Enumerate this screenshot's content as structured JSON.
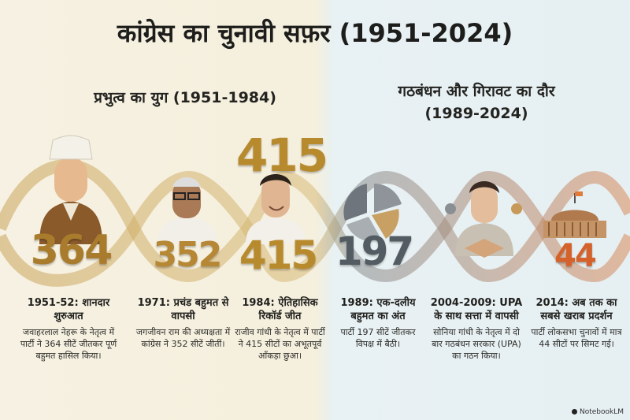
{
  "title": "कांग्रेस का चुनावी सफ़र (1951-2024)",
  "eras": {
    "dominance": "प्रभुत्व का युग (1951-1984)",
    "decline_line1": "गठबंधन और गिरावट का दौर",
    "decline_line2": "(1989-2024)"
  },
  "milestones": [
    {
      "seats": "364",
      "heading": "1951-52: शानदार शुरुआत",
      "description": "जवाहरलाल नेहरू के नेतृत्व में पार्टी ने 364 सीटें जीतकर पूर्ण बहुमत हासिल किया।"
    },
    {
      "seats": "352",
      "heading": "1971: प्रचंड बहुमत से वापसी",
      "description": "जगजीवन राम की अध्यक्षता में कांग्रेस ने 352 सीटें जीतीं।"
    },
    {
      "seats": "415",
      "heading": "1984: ऐतिहासिक रिकॉर्ड जीत",
      "description": "राजीव गांधी के नेतृत्व में पार्टी ने 415 सीटों का अभूतपूर्व आँकड़ा छुआ।"
    },
    {
      "seats": "197",
      "heading": "1989: एक-दलीय बहुमत का अंत",
      "description": "पार्टी 197 सीटें जीतकर विपक्ष में बैठी।"
    },
    {
      "seats": "",
      "heading": "2004-2009: UPA के साथ सत्ता में वापसी",
      "description": "सोनिया गांधी के नेतृत्व में दो बार गठबंधन सरकार (UPA) का गठन किया।"
    },
    {
      "seats": "44",
      "heading": "2014: अब तक का सबसे खराब प्रदर्शन",
      "description": "पार्टी लोकसभा चुनावों में मात्र 44 सीटों पर सिमट गई।"
    }
  ],
  "record_top": "415",
  "brand": "NotebookLM",
  "colors": {
    "gold": "#b88a2e",
    "grey": "#56606a",
    "orange": "#d4622a"
  }
}
